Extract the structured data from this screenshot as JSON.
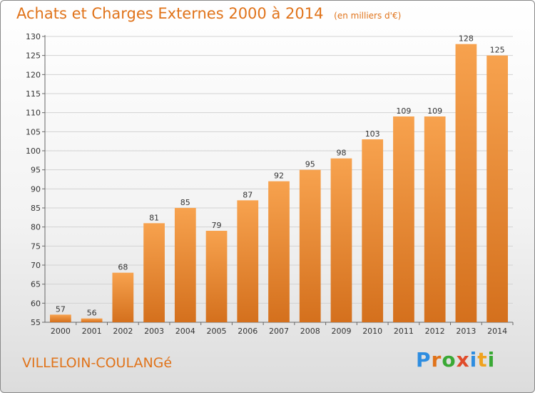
{
  "header": {
    "title": "Achats et Charges Externes 2000 à 2014",
    "unit": "(en milliers d'€)"
  },
  "footer": {
    "commune": "VILLELOIN-COULANGé",
    "brand": [
      "P",
      "r",
      "o",
      "x",
      "i",
      "t",
      "i"
    ]
  },
  "colors": {
    "accent": "#e0731a",
    "bar_light": "#f7a24e",
    "bar_dark": "#d4701d",
    "brand_letters": [
      "#2e8de0",
      "#e0731a",
      "#3aa935",
      "#e04c2b",
      "#2e8de0",
      "#f0a21e",
      "#3aa935"
    ]
  },
  "chart_data": {
    "type": "bar",
    "title": "Achats et Charges Externes 2000 à 2014",
    "subtitle": "(en milliers d'€)",
    "categories": [
      "2000",
      "2001",
      "2002",
      "2003",
      "2004",
      "2005",
      "2006",
      "2007",
      "2008",
      "2009",
      "2010",
      "2011",
      "2012",
      "2013",
      "2014"
    ],
    "values": [
      57,
      56,
      68,
      81,
      85,
      79,
      87,
      92,
      95,
      98,
      103,
      109,
      109,
      128,
      125
    ],
    "xlabel": "",
    "ylabel": "",
    "ylim": [
      55,
      130
    ],
    "yticks": [
      55,
      60,
      65,
      70,
      75,
      80,
      85,
      90,
      95,
      100,
      105,
      110,
      115,
      120,
      125,
      130
    ],
    "grid": true,
    "legend": "none"
  }
}
